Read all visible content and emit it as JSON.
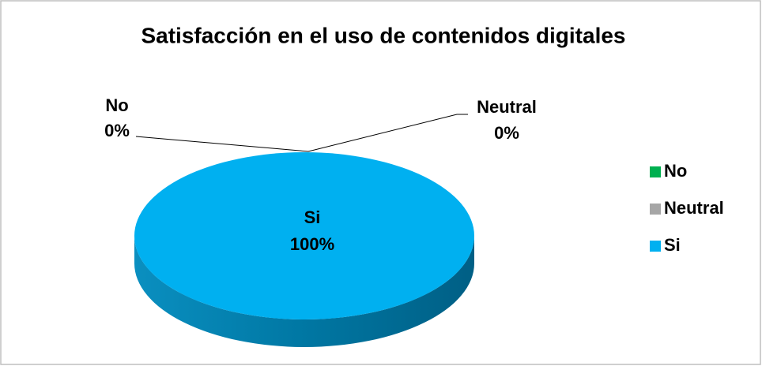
{
  "chart_data": {
    "type": "pie",
    "title": "Satisfacción en el uso de contenidos digitales",
    "categories": [
      "No",
      "Neutral",
      "Si"
    ],
    "values": [
      0,
      0,
      100
    ],
    "value_labels": [
      "0%",
      "0%",
      "100%"
    ],
    "colors": [
      "#00b050",
      "#a6a6a6",
      "#00b0f0"
    ],
    "legend": "right"
  }
}
